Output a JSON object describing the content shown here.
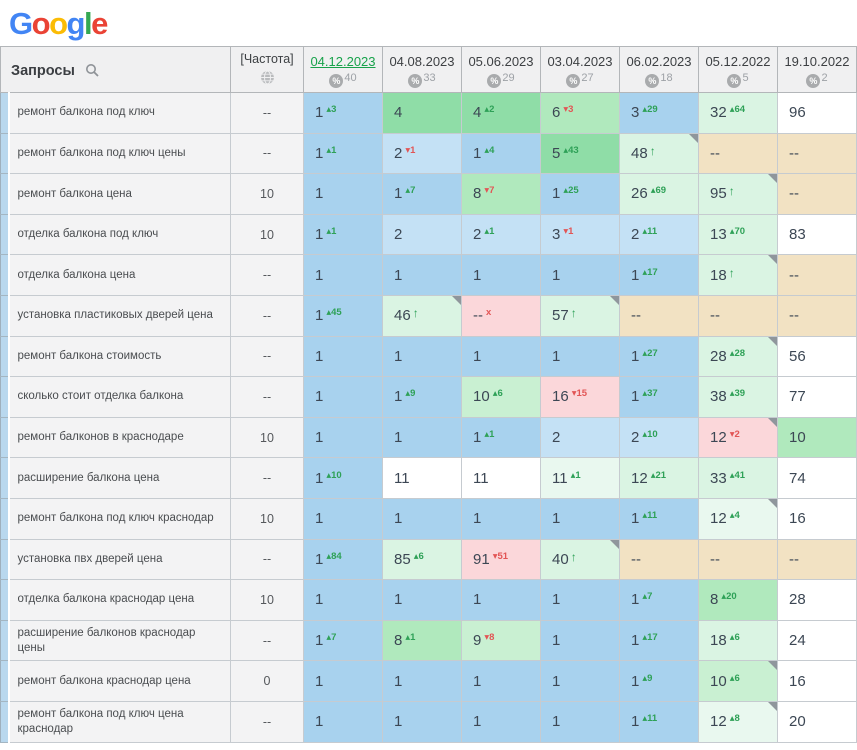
{
  "logo": {
    "name": "Google",
    "letters": [
      {
        "ch": "G",
        "color": "#4285F4"
      },
      {
        "ch": "o",
        "color": "#EA4335"
      },
      {
        "ch": "o",
        "color": "#FBBC05"
      },
      {
        "ch": "g",
        "color": "#4285F4"
      },
      {
        "ch": "l",
        "color": "#34A853"
      },
      {
        "ch": "e",
        "color": "#EA4335"
      }
    ]
  },
  "header": {
    "queries_label": "Запросы",
    "frequency_label": "[Частота]",
    "dates": [
      {
        "label": "04.12.2023",
        "count": "40",
        "active": true
      },
      {
        "label": "04.08.2023",
        "count": "33",
        "active": false
      },
      {
        "label": "05.06.2023",
        "count": "29",
        "active": false
      },
      {
        "label": "03.04.2023",
        "count": "27",
        "active": false
      },
      {
        "label": "06.02.2023",
        "count": "18",
        "active": false
      },
      {
        "label": "05.12.2022",
        "count": "5",
        "active": false
      },
      {
        "label": "19.10.2022",
        "count": "2",
        "active": false
      }
    ]
  },
  "colors": {
    "active_date": "#18a24b",
    "delta_up": "#2ea157",
    "delta_down": "#e25555",
    "palette": {
      "b1": "#a8d2ee",
      "b2": "#c4e1f5",
      "g1": "#8fdda7",
      "g2": "#b0e9bd",
      "g3": "#c9f0d2",
      "g4": "#daf4e3",
      "g5": "#e9f8ef",
      "w": "#ffffff",
      "t": "#f2e2c3",
      "p": "#fbd7da"
    }
  },
  "rows": [
    {
      "query": "ремонт балкона под ключ",
      "frequency": "--",
      "cells": [
        {
          "v": "1",
          "d": "3",
          "dd": "u",
          "bg": "b1"
        },
        {
          "v": "4",
          "bg": "g1"
        },
        {
          "v": "4",
          "d": "2",
          "dd": "u",
          "bg": "g1"
        },
        {
          "v": "6",
          "d": "3",
          "dd": "d",
          "bg": "g2"
        },
        {
          "v": "3",
          "d": "29",
          "dd": "u",
          "bg": "b1"
        },
        {
          "v": "32",
          "d": "64",
          "dd": "u",
          "bg": "g4"
        },
        {
          "v": "96",
          "bg": "w"
        }
      ]
    },
    {
      "query": "ремонт балкона под ключ цены",
      "frequency": "--",
      "cells": [
        {
          "v": "1",
          "d": "1",
          "dd": "u",
          "bg": "b1"
        },
        {
          "v": "2",
          "d": "1",
          "dd": "d",
          "bg": "b2"
        },
        {
          "v": "1",
          "d": "4",
          "dd": "u",
          "bg": "b1"
        },
        {
          "v": "5",
          "d": "43",
          "dd": "u",
          "bg": "g1"
        },
        {
          "v": "48",
          "ar": true,
          "c": true,
          "bg": "g4"
        },
        {
          "v": "--",
          "bg": "t"
        },
        {
          "v": "--",
          "bg": "t"
        }
      ]
    },
    {
      "query": "ремонт балкона цена",
      "frequency": "10",
      "cells": [
        {
          "v": "1",
          "bg": "b1"
        },
        {
          "v": "1",
          "d": "7",
          "dd": "u",
          "bg": "b1"
        },
        {
          "v": "8",
          "d": "7",
          "dd": "d",
          "bg": "g2"
        },
        {
          "v": "1",
          "d": "25",
          "dd": "u",
          "bg": "b1"
        },
        {
          "v": "26",
          "d": "69",
          "dd": "u",
          "bg": "g4"
        },
        {
          "v": "95",
          "ar": true,
          "c": true,
          "bg": "g4"
        },
        {
          "v": "--",
          "bg": "t"
        }
      ]
    },
    {
      "query": "отделка балкона под ключ",
      "frequency": "10",
      "cells": [
        {
          "v": "1",
          "d": "1",
          "dd": "u",
          "bg": "b1"
        },
        {
          "v": "2",
          "bg": "b2"
        },
        {
          "v": "2",
          "d": "1",
          "dd": "u",
          "bg": "b2"
        },
        {
          "v": "3",
          "d": "1",
          "dd": "d",
          "bg": "b2"
        },
        {
          "v": "2",
          "d": "11",
          "dd": "u",
          "bg": "b2"
        },
        {
          "v": "13",
          "d": "70",
          "dd": "u",
          "bg": "g4"
        },
        {
          "v": "83",
          "bg": "w"
        }
      ]
    },
    {
      "query": "отделка балкона цена",
      "frequency": "--",
      "cells": [
        {
          "v": "1",
          "bg": "b1"
        },
        {
          "v": "1",
          "bg": "b1"
        },
        {
          "v": "1",
          "bg": "b1"
        },
        {
          "v": "1",
          "bg": "b1"
        },
        {
          "v": "1",
          "d": "17",
          "dd": "u",
          "bg": "b1"
        },
        {
          "v": "18",
          "ar": true,
          "c": true,
          "bg": "g4"
        },
        {
          "v": "--",
          "bg": "t"
        }
      ]
    },
    {
      "query": "установка пластиковых дверей цена",
      "frequency": "--",
      "cells": [
        {
          "v": "1",
          "d": "45",
          "dd": "u",
          "bg": "b1"
        },
        {
          "v": "46",
          "ar": true,
          "c": true,
          "bg": "g4"
        },
        {
          "v": "--",
          "d": "x",
          "dd": "d",
          "bg": "p"
        },
        {
          "v": "57",
          "ar": true,
          "c": true,
          "bg": "g4"
        },
        {
          "v": "--",
          "bg": "t"
        },
        {
          "v": "--",
          "bg": "t"
        },
        {
          "v": "--",
          "bg": "t"
        }
      ]
    },
    {
      "query": "ремонт балкона стоимость",
      "frequency": "--",
      "cells": [
        {
          "v": "1",
          "bg": "b1"
        },
        {
          "v": "1",
          "bg": "b1"
        },
        {
          "v": "1",
          "bg": "b1"
        },
        {
          "v": "1",
          "bg": "b1"
        },
        {
          "v": "1",
          "d": "27",
          "dd": "u",
          "bg": "b1"
        },
        {
          "v": "28",
          "d": "28",
          "dd": "u",
          "c": true,
          "bg": "g4"
        },
        {
          "v": "56",
          "bg": "w"
        }
      ]
    },
    {
      "query": "сколько стоит отделка балкона",
      "frequency": "--",
      "cells": [
        {
          "v": "1",
          "bg": "b1"
        },
        {
          "v": "1",
          "d": "9",
          "dd": "u",
          "bg": "b1"
        },
        {
          "v": "10",
          "d": "6",
          "dd": "u",
          "bg": "g3"
        },
        {
          "v": "16",
          "d": "15",
          "dd": "d",
          "bg": "p"
        },
        {
          "v": "1",
          "d": "37",
          "dd": "u",
          "bg": "b1"
        },
        {
          "v": "38",
          "d": "39",
          "dd": "u",
          "bg": "g4"
        },
        {
          "v": "77",
          "bg": "w"
        }
      ]
    },
    {
      "query": "ремонт балконов в краснодаре",
      "frequency": "10",
      "cells": [
        {
          "v": "1",
          "bg": "b1"
        },
        {
          "v": "1",
          "bg": "b1"
        },
        {
          "v": "1",
          "d": "1",
          "dd": "u",
          "bg": "b1"
        },
        {
          "v": "2",
          "bg": "b2"
        },
        {
          "v": "2",
          "d": "10",
          "dd": "u",
          "bg": "b2"
        },
        {
          "v": "12",
          "d": "2",
          "dd": "d",
          "c": true,
          "bg": "p"
        },
        {
          "v": "10",
          "bg": "g2"
        }
      ]
    },
    {
      "query": "расширение балкона цена",
      "frequency": "--",
      "cells": [
        {
          "v": "1",
          "d": "10",
          "dd": "u",
          "bg": "b1"
        },
        {
          "v": "11",
          "bg": "w"
        },
        {
          "v": "11",
          "bg": "w"
        },
        {
          "v": "11",
          "d": "1",
          "dd": "u",
          "bg": "g5"
        },
        {
          "v": "12",
          "d": "21",
          "dd": "u",
          "bg": "g4"
        },
        {
          "v": "33",
          "d": "41",
          "dd": "u",
          "bg": "g4"
        },
        {
          "v": "74",
          "bg": "w"
        }
      ]
    },
    {
      "query": "ремонт балкона под ключ краснодар",
      "frequency": "10",
      "cells": [
        {
          "v": "1",
          "bg": "b1"
        },
        {
          "v": "1",
          "bg": "b1"
        },
        {
          "v": "1",
          "bg": "b1"
        },
        {
          "v": "1",
          "bg": "b1"
        },
        {
          "v": "1",
          "d": "11",
          "dd": "u",
          "bg": "b1"
        },
        {
          "v": "12",
          "d": "4",
          "dd": "u",
          "c": true,
          "bg": "g5"
        },
        {
          "v": "16",
          "bg": "w"
        }
      ]
    },
    {
      "query": "установка пвх дверей цена",
      "frequency": "--",
      "cells": [
        {
          "v": "1",
          "d": "84",
          "dd": "u",
          "bg": "b1"
        },
        {
          "v": "85",
          "d": "6",
          "dd": "u",
          "bg": "g4"
        },
        {
          "v": "91",
          "d": "51",
          "dd": "d",
          "bg": "p"
        },
        {
          "v": "40",
          "ar": true,
          "c": true,
          "bg": "g4"
        },
        {
          "v": "--",
          "bg": "t"
        },
        {
          "v": "--",
          "bg": "t"
        },
        {
          "v": "--",
          "bg": "t"
        }
      ]
    },
    {
      "query": "отделка балкона краснодар цена",
      "frequency": "10",
      "cells": [
        {
          "v": "1",
          "bg": "b1"
        },
        {
          "v": "1",
          "bg": "b1"
        },
        {
          "v": "1",
          "bg": "b1"
        },
        {
          "v": "1",
          "bg": "b1"
        },
        {
          "v": "1",
          "d": "7",
          "dd": "u",
          "bg": "b1"
        },
        {
          "v": "8",
          "d": "20",
          "dd": "u",
          "bg": "g2"
        },
        {
          "v": "28",
          "bg": "w"
        }
      ]
    },
    {
      "query": "расширение балконов краснодар цены",
      "frequency": "--",
      "cells": [
        {
          "v": "1",
          "d": "7",
          "dd": "u",
          "bg": "b1"
        },
        {
          "v": "8",
          "d": "1",
          "dd": "u",
          "bg": "g2"
        },
        {
          "v": "9",
          "d": "8",
          "dd": "d",
          "bg": "g3"
        },
        {
          "v": "1",
          "bg": "b1"
        },
        {
          "v": "1",
          "d": "17",
          "dd": "u",
          "bg": "b1"
        },
        {
          "v": "18",
          "d": "6",
          "dd": "u",
          "bg": "g4"
        },
        {
          "v": "24",
          "bg": "w"
        }
      ]
    },
    {
      "query": "ремонт балкона краснодар цена",
      "frequency": "0",
      "cells": [
        {
          "v": "1",
          "bg": "b1"
        },
        {
          "v": "1",
          "bg": "b1"
        },
        {
          "v": "1",
          "bg": "b1"
        },
        {
          "v": "1",
          "bg": "b1"
        },
        {
          "v": "1",
          "d": "9",
          "dd": "u",
          "bg": "b1"
        },
        {
          "v": "10",
          "d": "6",
          "dd": "u",
          "c": true,
          "bg": "g3"
        },
        {
          "v": "16",
          "bg": "w"
        }
      ]
    },
    {
      "query": "ремонт балкона под ключ цена краснодар",
      "frequency": "--",
      "cells": [
        {
          "v": "1",
          "bg": "b1"
        },
        {
          "v": "1",
          "bg": "b1"
        },
        {
          "v": "1",
          "bg": "b1"
        },
        {
          "v": "1",
          "bg": "b1"
        },
        {
          "v": "1",
          "d": "11",
          "dd": "u",
          "bg": "b1"
        },
        {
          "v": "12",
          "d": "8",
          "dd": "u",
          "c": true,
          "bg": "g5"
        },
        {
          "v": "20",
          "bg": "w"
        }
      ]
    }
  ]
}
